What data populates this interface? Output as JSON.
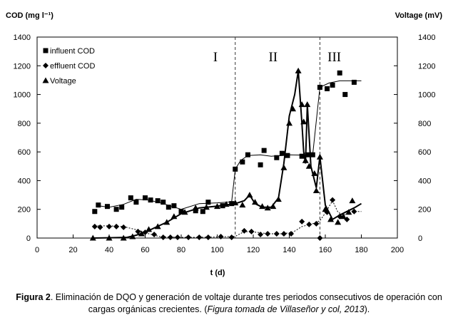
{
  "caption": {
    "label": "Figura 2",
    "text_1": ". Eliminación de DQO y generación de voltaje durante tres periodos consecutivos de operación con cargas orgánicas crecientes. (",
    "source": "Figura tomada de Villaseñor y col, 2013",
    "text_2": ")."
  },
  "chart_data": {
    "type": "scatter",
    "ylabel_left": "COD (mg l⁻¹)",
    "ylabel_right": "Voltage (mV)",
    "xlabel": "t (d)",
    "xlim": [
      0,
      200
    ],
    "ylim_left": [
      0,
      1400
    ],
    "ylim_right": [
      0,
      1400
    ],
    "x_ticks": [
      0,
      20,
      40,
      60,
      80,
      100,
      120,
      140,
      160,
      180,
      200
    ],
    "y_ticks_left": [
      0,
      200,
      400,
      600,
      800,
      1000,
      1200,
      1400
    ],
    "y_ticks_right": [
      0,
      200,
      400,
      600,
      800,
      1000,
      1200,
      1400
    ],
    "grid": false,
    "legend_position": "top-left",
    "period_boundaries": [
      110,
      157
    ],
    "periods": [
      {
        "label": "I",
        "x": 99
      },
      {
        "label": "II",
        "x": 131
      },
      {
        "label": "III",
        "x": 165
      }
    ],
    "series": [
      {
        "name": "influent COD",
        "marker": "square",
        "points": [
          [
            32,
            185
          ],
          [
            34,
            230
          ],
          [
            39,
            220
          ],
          [
            44,
            200
          ],
          [
            47,
            215
          ],
          [
            52,
            280
          ],
          [
            55,
            250
          ],
          [
            60,
            280
          ],
          [
            63,
            265
          ],
          [
            67,
            260
          ],
          [
            70,
            250
          ],
          [
            73,
            215
          ],
          [
            76,
            225
          ],
          [
            80,
            185
          ],
          [
            88,
            190
          ],
          [
            92,
            185
          ],
          [
            95,
            250
          ],
          [
            103,
            225
          ],
          [
            108,
            240
          ],
          [
            110,
            480
          ],
          [
            114,
            530
          ],
          [
            117,
            580
          ],
          [
            124,
            510
          ],
          [
            126,
            610
          ],
          [
            133,
            560
          ],
          [
            136,
            590
          ],
          [
            139,
            575
          ],
          [
            147,
            570
          ],
          [
            150,
            580
          ],
          [
            153,
            580
          ],
          [
            157,
            1050
          ],
          [
            161,
            1040
          ],
          [
            164,
            1065
          ],
          [
            168,
            1150
          ],
          [
            171,
            1000
          ],
          [
            176,
            1085
          ]
        ],
        "trend": [
          [
            34,
            225
          ],
          [
            40,
            215
          ],
          [
            48,
            235
          ],
          [
            55,
            270
          ],
          [
            62,
            265
          ],
          [
            70,
            240
          ],
          [
            80,
            200
          ],
          [
            90,
            240
          ],
          [
            100,
            245
          ],
          [
            108,
            252
          ],
          [
            110,
            480
          ],
          [
            113,
            540
          ],
          [
            117,
            575
          ],
          [
            124,
            580
          ],
          [
            130,
            570
          ],
          [
            136,
            575
          ],
          [
            140,
            580
          ],
          [
            147,
            578
          ],
          [
            153,
            580
          ],
          [
            157,
            1050
          ],
          [
            162,
            1080
          ],
          [
            168,
            1095
          ],
          [
            176,
            1095
          ],
          [
            180,
            1095
          ]
        ]
      },
      {
        "name": "effluent COD",
        "marker": "diamond",
        "points": [
          [
            32,
            80
          ],
          [
            35,
            75
          ],
          [
            40,
            80
          ],
          [
            44,
            80
          ],
          [
            48,
            75
          ],
          [
            56,
            45
          ],
          [
            60,
            40
          ],
          [
            65,
            25
          ],
          [
            70,
            5
          ],
          [
            74,
            5
          ],
          [
            78,
            5
          ],
          [
            84,
            5
          ],
          [
            90,
            5
          ],
          [
            95,
            5
          ],
          [
            102,
            10
          ],
          [
            108,
            5
          ],
          [
            115,
            50
          ],
          [
            119,
            45
          ],
          [
            124,
            25
          ],
          [
            128,
            30
          ],
          [
            133,
            30
          ],
          [
            137,
            30
          ],
          [
            141,
            30
          ],
          [
            147,
            115
          ],
          [
            151,
            95
          ],
          [
            155,
            100
          ],
          [
            157,
            0
          ],
          [
            161,
            180
          ],
          [
            164,
            265
          ],
          [
            168,
            150
          ],
          [
            172,
            130
          ],
          [
            176,
            185
          ]
        ],
        "trend": [
          [
            32,
            85
          ],
          [
            40,
            85
          ],
          [
            48,
            80
          ],
          [
            56,
            55
          ],
          [
            62,
            30
          ],
          [
            68,
            10
          ],
          [
            78,
            5
          ],
          [
            90,
            5
          ],
          [
            102,
            8
          ],
          [
            110,
            12
          ],
          [
            115,
            45
          ],
          [
            122,
            40
          ],
          [
            128,
            30
          ],
          [
            136,
            30
          ],
          [
            142,
            40
          ],
          [
            147,
            80
          ],
          [
            153,
            100
          ],
          [
            157,
            120
          ],
          [
            160,
            175
          ],
          [
            164,
            260
          ],
          [
            167,
            180
          ],
          [
            170,
            160
          ],
          [
            174,
            175
          ],
          [
            178,
            185
          ],
          [
            180,
            185
          ]
        ]
      },
      {
        "name": "Voltage",
        "marker": "triangle",
        "points": [
          [
            31,
            0
          ],
          [
            40,
            0
          ],
          [
            48,
            0
          ],
          [
            53,
            10
          ],
          [
            58,
            30
          ],
          [
            62,
            60
          ],
          [
            67,
            80
          ],
          [
            72,
            110
          ],
          [
            76,
            150
          ],
          [
            82,
            180
          ],
          [
            88,
            210
          ],
          [
            94,
            215
          ],
          [
            100,
            220
          ],
          [
            105,
            235
          ],
          [
            110,
            245
          ],
          [
            114,
            230
          ],
          [
            118,
            300
          ],
          [
            121,
            250
          ],
          [
            125,
            220
          ],
          [
            128,
            210
          ],
          [
            131,
            220
          ],
          [
            134,
            270
          ],
          [
            137,
            490
          ],
          [
            140,
            800
          ],
          [
            142,
            900
          ],
          [
            145,
            1165
          ],
          [
            147,
            930
          ],
          [
            148,
            810
          ],
          [
            149,
            540
          ],
          [
            150,
            930
          ],
          [
            151,
            500
          ],
          [
            154,
            450
          ],
          [
            155,
            330
          ],
          [
            157,
            565
          ],
          [
            160,
            200
          ],
          [
            163,
            130
          ],
          [
            167,
            110
          ],
          [
            170,
            150
          ],
          [
            173,
            180
          ],
          [
            175,
            260
          ]
        ],
        "trend": [
          [
            31,
            0
          ],
          [
            40,
            2
          ],
          [
            50,
            5
          ],
          [
            55,
            20
          ],
          [
            60,
            40
          ],
          [
            65,
            70
          ],
          [
            72,
            110
          ],
          [
            80,
            170
          ],
          [
            90,
            210
          ],
          [
            100,
            222
          ],
          [
            110,
            240
          ],
          [
            115,
            260
          ],
          [
            118,
            300
          ],
          [
            121,
            240
          ],
          [
            125,
            215
          ],
          [
            130,
            215
          ],
          [
            134,
            280
          ],
          [
            137,
            520
          ],
          [
            140,
            850
          ],
          [
            143,
            1000
          ],
          [
            145,
            1165
          ],
          [
            147,
            800
          ],
          [
            148,
            600
          ],
          [
            149,
            520
          ],
          [
            150,
            930
          ],
          [
            152,
            500
          ],
          [
            155,
            350
          ],
          [
            157,
            570
          ],
          [
            160,
            230
          ],
          [
            164,
            130
          ],
          [
            168,
            160
          ],
          [
            172,
            185
          ],
          [
            176,
            210
          ],
          [
            180,
            240
          ]
        ]
      }
    ]
  }
}
